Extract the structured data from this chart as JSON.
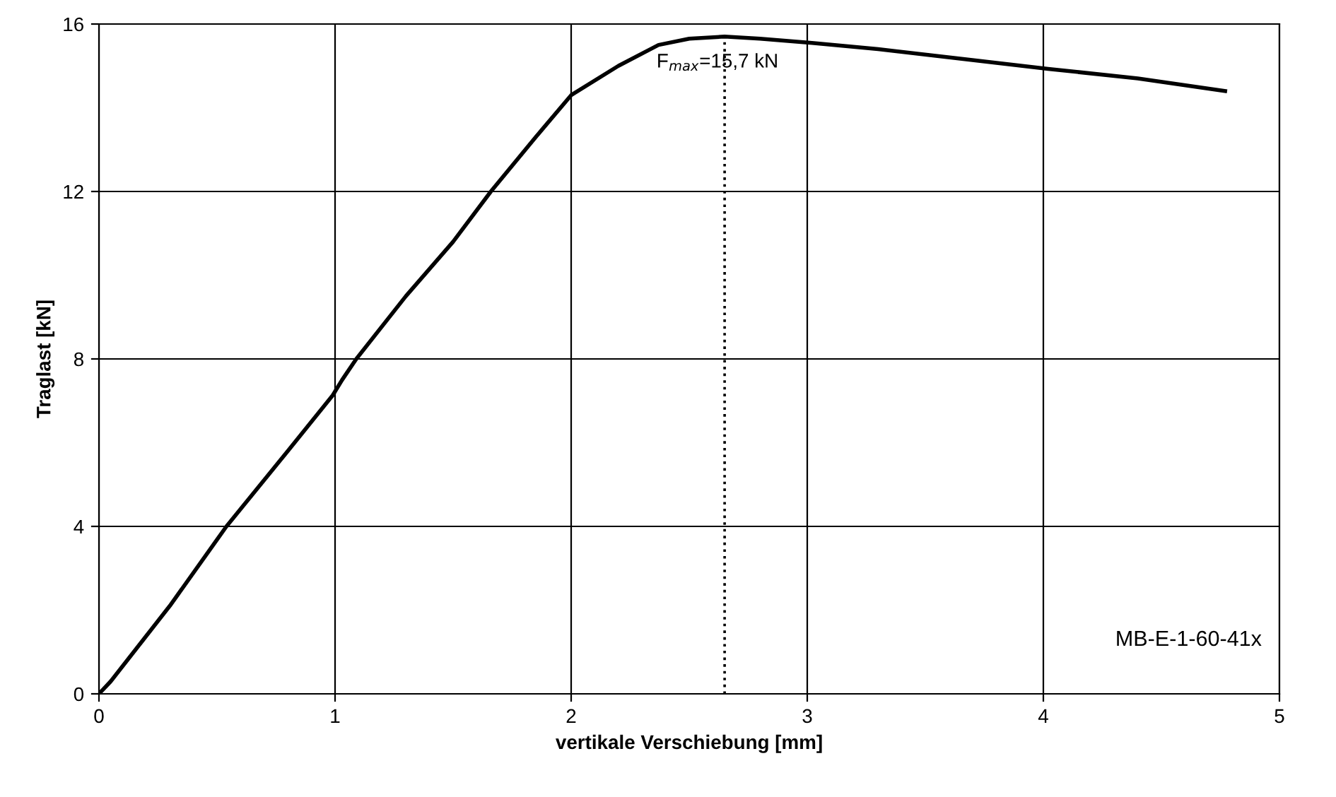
{
  "chart_data": {
    "type": "line",
    "xlabel": "vertikale Verschiebung [mm]",
    "ylabel": "Traglast [kN]",
    "xlim": [
      0,
      5
    ],
    "ylim": [
      0,
      16
    ],
    "xticks": [
      0,
      1,
      2,
      3,
      4,
      5
    ],
    "yticks": [
      0,
      4,
      8,
      12,
      16
    ],
    "grid": true,
    "legend": false,
    "marker": "none",
    "series": [
      {
        "color": "#000000",
        "line_style": "solid",
        "x": [
          0,
          0.05,
          0.3,
          0.54,
          0.8,
          0.99,
          1.03,
          1.09,
          1.3,
          1.5,
          1.66,
          1.85,
          2.0,
          2.2,
          2.37,
          2.5,
          2.65,
          2.8,
          3.02,
          3.3,
          3.68,
          4.02,
          4.4,
          4.77
        ],
        "values": [
          0,
          0.3,
          2.1,
          4,
          5.8,
          7.13,
          7.5,
          8,
          9.5,
          10.8,
          12,
          13.3,
          14.3,
          15.0,
          15.5,
          15.65,
          15.7,
          15.65,
          15.55,
          15.4,
          15.15,
          14.93,
          14.7,
          14.4
        ]
      },
      {
        "color": "#000000",
        "line_style": "dotted",
        "x": [
          2.65,
          2.65
        ],
        "values": [
          0,
          15.7
        ]
      }
    ],
    "annotations": [
      {
        "text": "F$_{max}$=15,7 kN",
        "x": 2.65,
        "y": 15.7
      },
      "MB-E-1-60-41x"
    ]
  }
}
